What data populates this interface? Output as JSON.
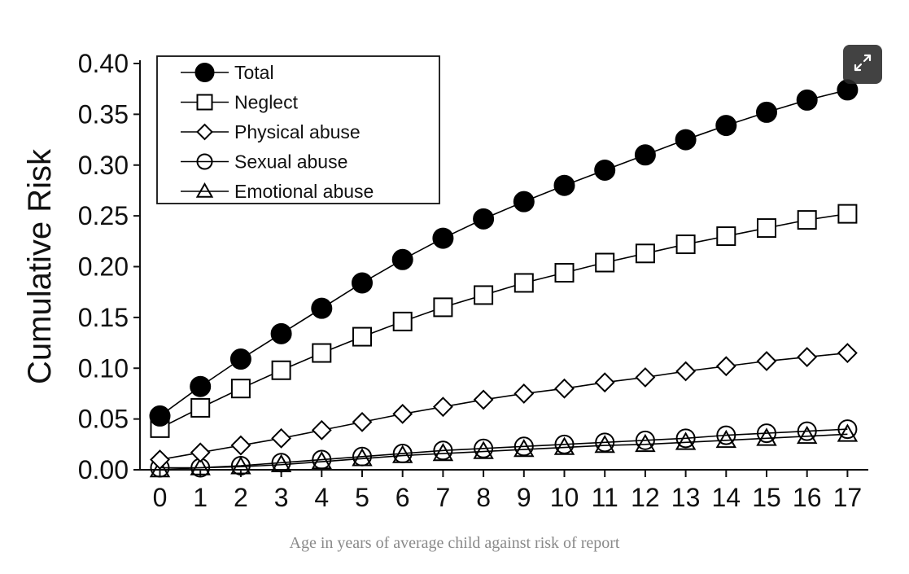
{
  "expand_button": {
    "icon": "expand-icon"
  },
  "caption": "Age in years of average child against risk of report",
  "chart_data": {
    "type": "line",
    "title": "",
    "xlabel": "",
    "ylabel": "Cumulative Risk",
    "x": [
      0,
      1,
      2,
      3,
      4,
      5,
      6,
      7,
      8,
      9,
      10,
      11,
      12,
      13,
      14,
      15,
      16,
      17
    ],
    "x_ticks": [
      "0",
      "1",
      "2",
      "3",
      "4",
      "5",
      "6",
      "7",
      "8",
      "9",
      "10",
      "11",
      "12",
      "13",
      "14",
      "15",
      "16",
      "17"
    ],
    "y_ticks": [
      "0.00",
      "0.05",
      "0.10",
      "0.15",
      "0.20",
      "0.25",
      "0.30",
      "0.35",
      "0.40"
    ],
    "ylim": [
      0,
      0.4
    ],
    "grid": false,
    "legend_position": "top-left",
    "series": [
      {
        "name": "Total",
        "marker": "filled-circle",
        "values": [
          0.053,
          0.082,
          0.109,
          0.134,
          0.159,
          0.184,
          0.207,
          0.228,
          0.247,
          0.264,
          0.28,
          0.295,
          0.31,
          0.325,
          0.339,
          0.352,
          0.364,
          0.374
        ]
      },
      {
        "name": "Neglect",
        "marker": "square",
        "values": [
          0.041,
          0.061,
          0.08,
          0.098,
          0.115,
          0.131,
          0.146,
          0.16,
          0.172,
          0.184,
          0.194,
          0.204,
          0.213,
          0.222,
          0.23,
          0.238,
          0.246,
          0.252
        ]
      },
      {
        "name": "Physical abuse",
        "marker": "diamond",
        "values": [
          0.01,
          0.017,
          0.024,
          0.031,
          0.039,
          0.047,
          0.055,
          0.062,
          0.069,
          0.075,
          0.08,
          0.086,
          0.091,
          0.097,
          0.102,
          0.107,
          0.111,
          0.115
        ]
      },
      {
        "name": "Sexual abuse",
        "marker": "circle",
        "values": [
          0.002,
          0.002,
          0.004,
          0.007,
          0.01,
          0.013,
          0.016,
          0.019,
          0.021,
          0.023,
          0.025,
          0.027,
          0.029,
          0.031,
          0.034,
          0.036,
          0.038,
          0.04
        ]
      },
      {
        "name": "Emotional abuse",
        "marker": "triangle",
        "values": [
          0.0,
          0.002,
          0.003,
          0.005,
          0.008,
          0.011,
          0.014,
          0.016,
          0.018,
          0.02,
          0.022,
          0.024,
          0.025,
          0.027,
          0.029,
          0.031,
          0.033,
          0.035
        ]
      }
    ]
  }
}
